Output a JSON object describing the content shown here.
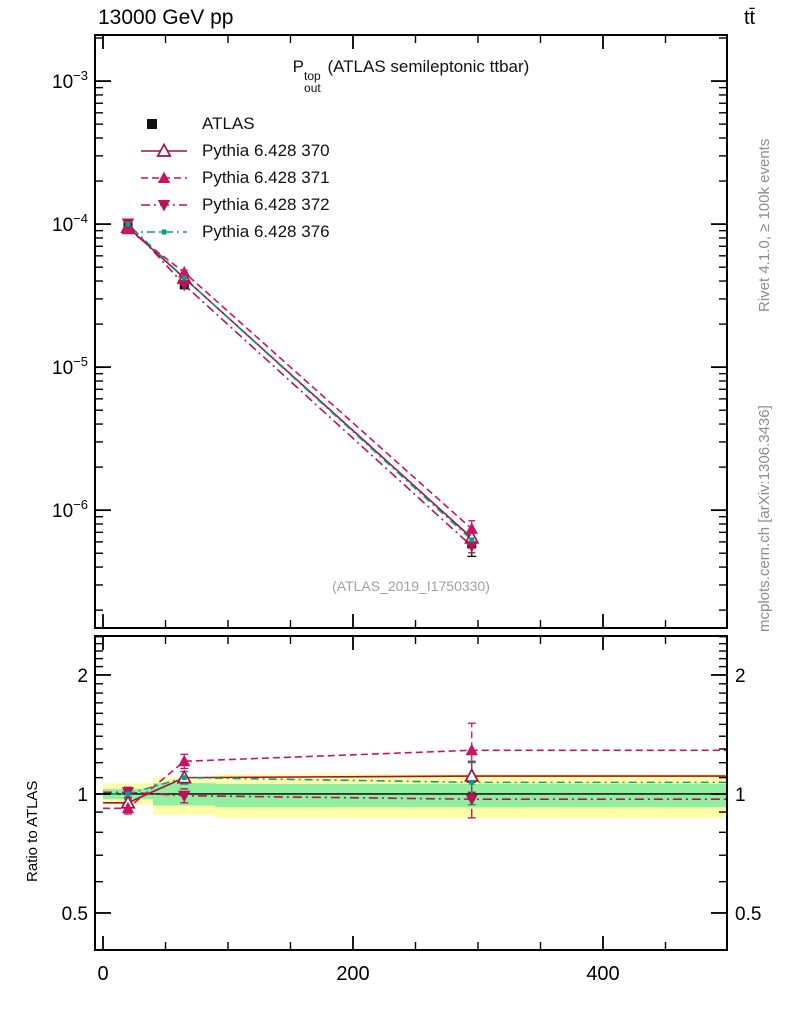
{
  "header": {
    "left": "13000 GeV pp",
    "right": "tt̄"
  },
  "main_title": {
    "p": "P",
    "sup": "top",
    "sub": "out",
    "rest": "(ATLAS semileptonic ttbar)"
  },
  "watermark": "(ATLAS_2019_I1750330)",
  "right_margin": {
    "top": "Rivet 4.1.0, ≥ 100k events",
    "bottom": "mcplots.cern.ch [arXiv:1306.3436]"
  },
  "ratio_ylabel": "Ratio to ATLAS",
  "chart_data": {
    "type": "line",
    "x": [
      20,
      65,
      295
    ],
    "bin_edges": [
      0,
      40,
      90,
      500
    ],
    "xlim": [
      -6.4,
      499.2
    ],
    "xticks": [
      {
        "value": 0,
        "label": "0"
      },
      {
        "value": 200,
        "label": "200"
      },
      {
        "value": 400,
        "label": "400"
      }
    ],
    "x_minor_step": 50,
    "main": {
      "yscale": "log",
      "ylim": [
        1.5e-07,
        0.0021
      ],
      "yticks": [
        {
          "value": 0.001,
          "exp": "−3"
        },
        {
          "value": 0.0001,
          "exp": "−4"
        },
        {
          "value": 1e-05,
          "exp": "−5"
        },
        {
          "value": 1e-06,
          "exp": "−6"
        }
      ]
    },
    "series": [
      {
        "name": "ATLAS",
        "kind": "data",
        "color": "#111111",
        "marker": "square",
        "line": "none",
        "values": [
          0.0001,
          3.8e-05,
          5.8e-07
        ],
        "yerr_factor": [
          [
            0.96,
            1.04
          ],
          [
            0.93,
            1.07
          ],
          [
            0.82,
            1.2
          ]
        ]
      },
      {
        "name": "Pythia 6.428 370",
        "kind": "mc",
        "color": "#a50f3e",
        "marker": "triangle-open",
        "line": "solid",
        "values": [
          9.5e-05,
          4.2e-05,
          6.4e-07
        ],
        "yerr_factor": [
          [
            0.98,
            1.02
          ],
          [
            0.97,
            1.03
          ],
          [
            0.9,
            1.12
          ]
        ],
        "ratio": [
          0.95,
          1.1,
          1.11
        ],
        "ratio_err": [
          0.03,
          0.04,
          0.1
        ]
      },
      {
        "name": "Pythia 6.428 371",
        "kind": "mc",
        "color": "#c91462",
        "marker": "triangle-up",
        "line": "dashed",
        "values": [
          9.2e-05,
          4.6e-05,
          7.4e-07
        ],
        "yerr_factor": [
          [
            0.98,
            1.02
          ],
          [
            0.97,
            1.03
          ],
          [
            0.88,
            1.14
          ]
        ],
        "ratio": [
          0.92,
          1.21,
          1.29
        ],
        "ratio_err": [
          0.03,
          0.05,
          0.22
        ]
      },
      {
        "name": "Pythia 6.428 372",
        "kind": "mc",
        "color": "#ba1257",
        "marker": "triangle-down",
        "line": "dashdot",
        "values": [
          0.000101,
          3.76e-05,
          5.6e-07
        ],
        "yerr_factor": [
          [
            0.98,
            1.02
          ],
          [
            0.97,
            1.03
          ],
          [
            0.9,
            1.12
          ]
        ],
        "ratio": [
          1.01,
          0.99,
          0.97
        ],
        "ratio_err": [
          0.03,
          0.04,
          0.1
        ]
      },
      {
        "name": "Pythia 6.428 376",
        "kind": "mc",
        "color": "#00a187",
        "marker": "small-square",
        "line": "dashdotdot",
        "values": [
          0.0001,
          4.2e-05,
          6.2e-07
        ],
        "yerr_factor": [
          [
            0.98,
            1.02
          ],
          [
            0.97,
            1.03
          ],
          [
            0.9,
            1.12
          ]
        ],
        "ratio": [
          1.0,
          1.1,
          1.07
        ],
        "ratio_err": [
          0.03,
          0.04,
          0.13
        ]
      }
    ],
    "ratio": {
      "yscale": "log",
      "ylim": [
        0.403,
        2.51
      ],
      "yticks": [
        {
          "value": 0.5,
          "label": "0.5"
        },
        {
          "value": 1,
          "label": "1"
        },
        {
          "value": 2,
          "label": "2"
        }
      ],
      "y_minor": [
        0.6,
        0.7,
        0.8,
        0.9,
        1.1,
        1.2,
        1.3,
        1.4,
        1.5,
        1.6,
        1.7,
        1.8,
        1.9,
        2.1,
        2.2,
        2.3,
        2.4,
        2.5
      ],
      "unity": 1,
      "band_colors": {
        "outer": "#ffffa8",
        "inner": "#90f0a0"
      },
      "bands": [
        {
          "x_range": [
            0,
            40
          ],
          "outer": [
            0.94,
            1.065
          ],
          "inner": [
            0.97,
            1.03
          ]
        },
        {
          "x_range": [
            40,
            90
          ],
          "outer": [
            0.885,
            1.1
          ],
          "inner": [
            0.935,
            1.065
          ]
        },
        {
          "x_range": [
            90,
            500
          ],
          "outer": [
            0.87,
            1.125
          ],
          "inner": [
            0.925,
            1.06
          ]
        }
      ]
    }
  }
}
